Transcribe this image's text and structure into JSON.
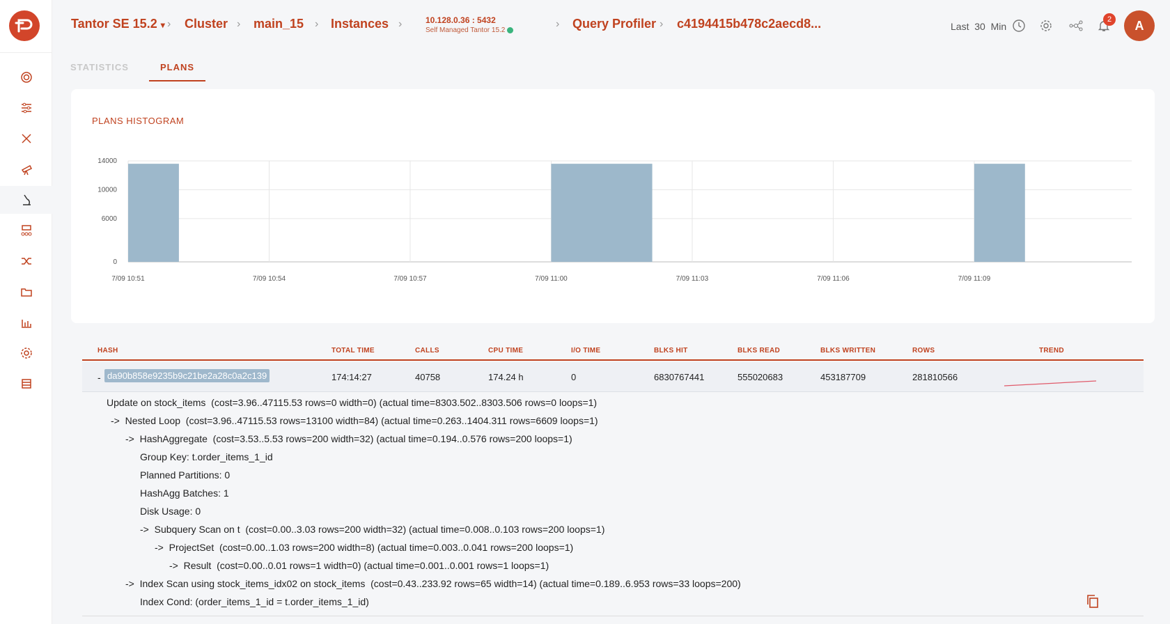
{
  "breadcrumb": {
    "product": "Tantor SE 15.2",
    "cluster": "Cluster",
    "main": "main_15",
    "instances": "Instances",
    "host": "10.128.0.36 : 5432",
    "host_sub": "Self Managed Tantor 15.2",
    "profiler": "Query Profiler",
    "query_id": "c4194415b478c2aecd8..."
  },
  "header": {
    "last_label": "Last",
    "last_value": "30",
    "last_unit": "Min",
    "notification_count": "2",
    "avatar_letter": "A"
  },
  "tabs": [
    {
      "label": "STATISTICS",
      "active": false
    },
    {
      "label": "PLANS",
      "active": true
    }
  ],
  "histogram_title": "PLANS HISTOGRAM",
  "chart_data": {
    "type": "bar",
    "title": "PLANS HISTOGRAM",
    "x_tick_labels": [
      "7/09 10:51",
      "7/09 10:54",
      "7/09 10:57",
      "7/09 11:00",
      "7/09 11:03",
      "7/09 11:06",
      "7/09 11:09"
    ],
    "y_tick_labels": [
      "0",
      "6000",
      "10000",
      "14000"
    ],
    "ylim": [
      0,
      14000
    ],
    "bars": [
      {
        "start": "10:51",
        "end": "10:52",
        "value": 13600
      },
      {
        "start": "11:00",
        "end": "11:02",
        "value": 13600
      },
      {
        "start": "11:09",
        "end": "11:10",
        "value": 13600
      }
    ],
    "bar_color": "#9db8cb",
    "grid": true
  },
  "table": {
    "headers": [
      "HASH",
      "TOTAL TIME",
      "CALLS",
      "CPU TIME",
      "I/O TIME",
      "BLKS HIT",
      "BLKS READ",
      "BLKS WRITTEN",
      "ROWS",
      "TREND"
    ],
    "row": {
      "toggle": "-",
      "hash": "da90b858e9235b9c21be2a28c0a2c139",
      "total_time": "174:14:27",
      "calls": "40758",
      "cpu_time": "174.24 h",
      "io_time": "0",
      "blks_hit": "6830767441",
      "blks_read": "555020683",
      "blks_written": "453187709",
      "rows": "281810566"
    }
  },
  "plan_lines": [
    "Update on stock_items  (cost=3.96..47115.53 rows=0 width=0) (actual time=8303.502..8303.506 rows=0 loops=1)",
    "->  Nested Loop  (cost=3.96..47115.53 rows=13100 width=84) (actual time=0.263..1404.311 rows=6609 loops=1)",
    "->  HashAggregate  (cost=3.53..5.53 rows=200 width=32) (actual time=0.194..0.576 rows=200 loops=1)",
    "Group Key: t.order_items_1_id",
    "Planned Partitions: 0",
    "HashAgg Batches: 1",
    "Disk Usage: 0",
    "->  Subquery Scan on t  (cost=0.00..3.03 rows=200 width=32) (actual time=0.008..0.103 rows=200 loops=1)",
    "->  ProjectSet  (cost=0.00..1.03 rows=200 width=8) (actual time=0.003..0.041 rows=200 loops=1)",
    "->  Result  (cost=0.00..0.01 rows=1 width=0) (actual time=0.001..0.001 rows=1 loops=1)",
    "->  Index Scan using stock_items_idx02 on stock_items  (cost=0.43..233.92 rows=65 width=14) (actual time=0.189..6.953 rows=33 loops=200)",
    "Index Cond: (order_items_1_id = t.order_items_1_id)"
  ]
}
